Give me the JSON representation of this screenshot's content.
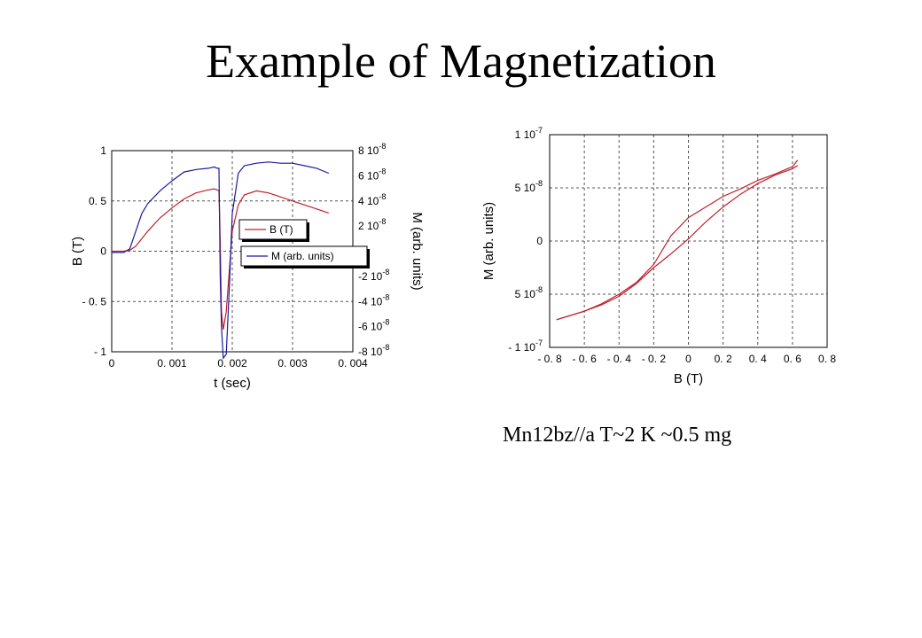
{
  "slide": {
    "title": "Example of Magnetization",
    "caption": "Mn12bz//a T~2 K ~0.5 mg"
  },
  "colors": {
    "B": "#c0202a",
    "M": "#1a1aa0",
    "grid": "#555555"
  },
  "chart_data": [
    {
      "type": "line",
      "xlabel": "t  (sec)",
      "ylabel": "B  (T)",
      "y2label": "M  (arb. units)",
      "xlim": [
        0,
        0.004
      ],
      "ylim": [
        -1,
        1
      ],
      "y2lim": [
        -8e-08,
        8e-08
      ],
      "x_ticks": [
        "0",
        "0. 001",
        "0. 002",
        "0. 003",
        "0. 004"
      ],
      "x_tick_values": [
        0,
        0.001,
        0.002,
        0.003,
        0.004
      ],
      "y_ticks": [
        "1",
        "0. 5",
        "0",
        "- 0. 5",
        "- 1"
      ],
      "y_tick_values": [
        1,
        0.5,
        0,
        -0.5,
        -1
      ],
      "y2_ticks": [
        "8 10",
        "6 10",
        "4 10",
        "2 10",
        "-2 10",
        "-4 10",
        "-6 10",
        "-8 10"
      ],
      "y2_tick_values": [
        8e-08,
        6e-08,
        4e-08,
        2e-08,
        -2e-08,
        -4e-08,
        -6e-08,
        -8e-08
      ],
      "y2_tick_exponents": [
        "-8",
        "-8",
        "-8",
        "-8",
        "-8",
        "-8",
        "-8",
        "-8"
      ],
      "grid": true,
      "legend": {
        "placement": "center-right",
        "entries": [
          "B (T)",
          "M (arb. units)"
        ]
      },
      "series": [
        {
          "name": "B (T)",
          "axis": "left",
          "color": "#c0202a",
          "x": [
            0,
            0.0002,
            0.0003,
            0.0004,
            0.0006,
            0.0008,
            0.001,
            0.0012,
            0.0014,
            0.0016,
            0.0017,
            0.00175,
            0.00178,
            0.0018,
            0.00182,
            0.00185,
            0.0019,
            0.00195,
            0.002,
            0.0021,
            0.0022,
            0.0024,
            0.0026,
            0.0028,
            0.003,
            0.0032,
            0.0034,
            0.0036
          ],
          "y": [
            0,
            0,
            0.01,
            0.05,
            0.2,
            0.33,
            0.43,
            0.52,
            0.58,
            0.61,
            0.62,
            0.61,
            0.6,
            0.1,
            -0.6,
            -0.78,
            -0.6,
            -0.2,
            0.2,
            0.46,
            0.56,
            0.6,
            0.58,
            0.54,
            0.5,
            0.46,
            0.42,
            0.38
          ]
        },
        {
          "name": "M (arb. units)",
          "axis": "right",
          "color": "#1a1aa0",
          "x": [
            0,
            0.0002,
            0.0003,
            0.0004,
            0.0005,
            0.0006,
            0.0008,
            0.001,
            0.0012,
            0.0014,
            0.0016,
            0.0017,
            0.00175,
            0.00178,
            0.0018,
            0.00182,
            0.00185,
            0.0019,
            0.00195,
            0.002,
            0.0021,
            0.0022,
            0.0024,
            0.0026,
            0.0028,
            0.003,
            0.0032,
            0.0034,
            0.0036
          ],
          "y": [
            -1e-09,
            -1e-09,
            2e-09,
            1.6e-08,
            3e-08,
            3.8e-08,
            4.8e-08,
            5.6e-08,
            6.3e-08,
            6.5e-08,
            6.6e-08,
            6.7e-08,
            6.6e-08,
            6.6e-08,
            -2e-08,
            -6e-08,
            -8.5e-08,
            -8.2e-08,
            -3e-08,
            3e-08,
            6.2e-08,
            6.8e-08,
            7e-08,
            7.1e-08,
            7e-08,
            7e-08,
            6.8e-08,
            6.6e-08,
            6.2e-08
          ]
        }
      ]
    },
    {
      "type": "line",
      "xlabel": "B (T)",
      "ylabel": "M  (arb. units)",
      "xlim": [
        -0.8,
        0.8
      ],
      "ylim": [
        -1e-07,
        1e-07
      ],
      "x_ticks": [
        "- 0. 8",
        "- 0. 6",
        "- 0. 4",
        "- 0. 2",
        "0",
        "0. 2",
        "0. 4",
        "0. 6",
        "0. 8"
      ],
      "x_tick_values": [
        -0.8,
        -0.6,
        -0.4,
        -0.2,
        0,
        0.2,
        0.4,
        0.6,
        0.8
      ],
      "y_ticks": [
        "1 10",
        "5 10",
        "0",
        "5 10",
        "- 1 10"
      ],
      "y_tick_values": [
        1e-07,
        5e-08,
        0,
        -5e-08,
        -1e-07
      ],
      "y_tick_exponents": [
        "-7",
        "-8",
        "",
        "-8",
        "-7"
      ],
      "grid": true,
      "series": [
        {
          "color": "#c0202a",
          "x": [
            -0.76,
            -0.7,
            -0.6,
            -0.5,
            -0.4,
            -0.3,
            -0.2,
            -0.1,
            0,
            0.1,
            0.2,
            0.3,
            0.4,
            0.5,
            0.6,
            0.63
          ],
          "y": [
            -7.4e-08,
            -7.1e-08,
            -6.6e-08,
            -6e-08,
            -5.2e-08,
            -4e-08,
            -2.5e-08,
            -1.2e-08,
            2e-09,
            1.8e-08,
            3.2e-08,
            4.4e-08,
            5.4e-08,
            6.2e-08,
            6.8e-08,
            7.1e-08
          ]
        },
        {
          "color": "#c0202a",
          "x": [
            0.63,
            0.6,
            0.5,
            0.4,
            0.3,
            0.2,
            0.1,
            0,
            -0.1,
            -0.2,
            -0.3,
            -0.4,
            -0.5,
            -0.6,
            -0.7,
            -0.76
          ],
          "y": [
            7.6e-08,
            7e-08,
            6.3e-08,
            5.7e-08,
            4.9e-08,
            4.2e-08,
            3.2e-08,
            2.2e-08,
            5e-09,
            -2.2e-08,
            -3.9e-08,
            -5e-08,
            -5.9e-08,
            -6.6e-08,
            -7.1e-08,
            -7.4e-08
          ]
        }
      ]
    }
  ]
}
